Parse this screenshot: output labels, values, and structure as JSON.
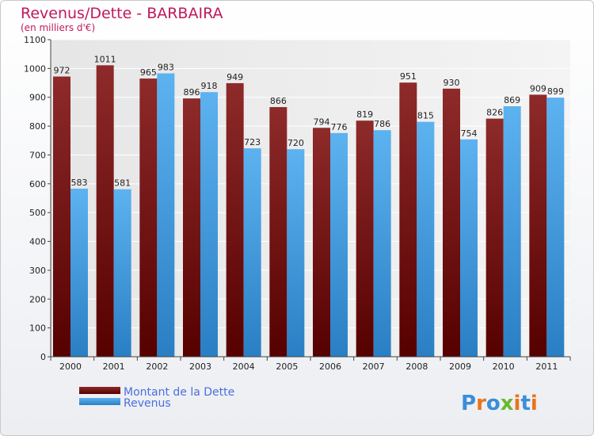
{
  "chart_data": {
    "type": "bar",
    "title": "Revenus/Dette - BARBAIRA",
    "subtitle": "(en milliers d'€)",
    "categories": [
      "2000",
      "2001",
      "2002",
      "2003",
      "2004",
      "2005",
      "2006",
      "2007",
      "2008",
      "2009",
      "2010",
      "2011"
    ],
    "series": [
      {
        "name": "Montant de la Dette",
        "values": [
          972,
          1011,
          965,
          896,
          949,
          866,
          794,
          819,
          951,
          930,
          826,
          909
        ],
        "color": "#7a1010"
      },
      {
        "name": "Revenus",
        "values": [
          583,
          581,
          983,
          918,
          723,
          720,
          776,
          786,
          815,
          754,
          869,
          899
        ],
        "color": "#4aa3e6"
      }
    ],
    "y_ticks": [
      0,
      100,
      200,
      300,
      400,
      500,
      600,
      700,
      800,
      900,
      1000,
      1100
    ],
    "ylim": [
      0,
      1100
    ],
    "grid": true,
    "legend_position": "bottom-left"
  },
  "logo": {
    "text": "Proxiti"
  }
}
